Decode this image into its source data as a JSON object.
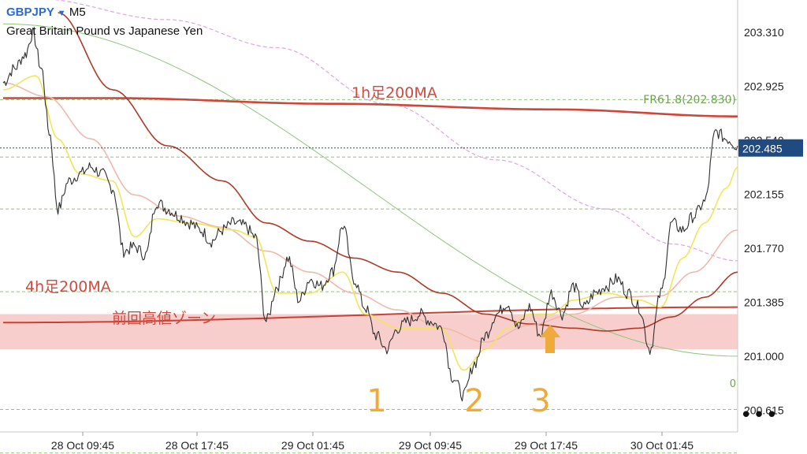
{
  "header": {
    "symbol": "GBPJPY",
    "timeframe": "M5",
    "subtitle": "Great Britain Pound vs Japanese Yen",
    "dropdown_icon": "triangle-down-icon"
  },
  "menu": {
    "label": "•••",
    "icon": "more-dots-icon"
  },
  "colors": {
    "price": "#2f2f2f",
    "ma_fast": "#f2e55c",
    "ma_pink": "#f0b9ad",
    "ma_dark": "#b03a26",
    "ma_1h200": "#d0453a",
    "ma_4h200": "#c74235",
    "trend_green": "#8dc67a",
    "ma_violet": "#e3a2e6",
    "zone_fill": "#f6c6c3",
    "annotation_red": "#d24a3e",
    "annotation_orange": "#eeaa3a",
    "fib_green": "#6aa64d",
    "current_price_bg": "#1f4b82"
  },
  "chart_data": {
    "type": "line",
    "symbol": "GBPJPY",
    "timeframe": "M5",
    "x_ticks": [
      "28 Oct 09:45",
      "28 Oct 17:45",
      "29 Oct 01:45",
      "29 Oct 09:45",
      "29 Oct 17:45",
      "30 Oct 01:45"
    ],
    "y_ticks": [
      "203.310",
      "202.925",
      "202.540",
      "202.155",
      "201.770",
      "201.385",
      "201.000",
      "200.615"
    ],
    "ylim": [
      200.46,
      203.54
    ],
    "current_price": "202.485",
    "fib_label": "FR61.8(202.830)",
    "fib_zero_label": "0",
    "fib_levels": [
      202.83,
      202.42,
      202.05,
      201.46,
      200.62,
      200.31
    ],
    "annotations": {
      "ma_1h": "1h足200MA",
      "ma_4h": "4h足200MA",
      "zone": "前回高値ゾーン",
      "swing_1": "1",
      "swing_2": "2",
      "swing_3": "3",
      "arrow_icon": "up-arrow-icon"
    },
    "price_keypoints": [
      [
        0,
        202.95
      ],
      [
        1,
        203.05
      ],
      [
        2,
        203.15
      ],
      [
        2.7,
        203.3
      ],
      [
        3.5,
        203.05
      ],
      [
        4.2,
        202.6
      ],
      [
        5,
        202.05
      ],
      [
        6,
        202.25
      ],
      [
        7,
        202.3
      ],
      [
        8,
        202.35
      ],
      [
        9,
        202.3
      ],
      [
        10,
        202.2
      ],
      [
        11,
        201.75
      ],
      [
        12,
        201.78
      ],
      [
        13,
        201.72
      ],
      [
        14,
        202.1
      ],
      [
        15,
        202.05
      ],
      [
        16,
        202.0
      ],
      [
        17,
        201.95
      ],
      [
        18,
        201.9
      ],
      [
        19,
        201.82
      ],
      [
        20,
        201.9
      ],
      [
        21,
        201.95
      ],
      [
        22,
        201.93
      ],
      [
        23,
        201.85
      ],
      [
        24,
        201.25
      ],
      [
        25,
        201.5
      ],
      [
        26,
        201.7
      ],
      [
        27,
        201.4
      ],
      [
        28,
        201.55
      ],
      [
        29,
        201.5
      ],
      [
        30,
        201.6
      ],
      [
        31,
        201.93
      ],
      [
        32,
        201.55
      ],
      [
        33,
        201.35
      ],
      [
        34,
        201.15
      ],
      [
        35,
        201.05
      ],
      [
        36,
        201.2
      ],
      [
        37,
        201.25
      ],
      [
        38,
        201.3
      ],
      [
        39,
        201.25
      ],
      [
        40,
        201.2
      ],
      [
        41,
        200.85
      ],
      [
        42,
        200.72
      ],
      [
        43,
        200.95
      ],
      [
        44,
        201.15
      ],
      [
        45,
        201.3
      ],
      [
        46,
        201.38
      ],
      [
        47,
        201.2
      ],
      [
        48,
        201.35
      ],
      [
        49,
        201.15
      ],
      [
        50,
        201.45
      ],
      [
        51,
        201.3
      ],
      [
        52,
        201.5
      ],
      [
        53,
        201.35
      ],
      [
        54,
        201.45
      ],
      [
        55,
        201.5
      ],
      [
        56,
        201.55
      ],
      [
        57,
        201.45
      ],
      [
        58,
        201.35
      ],
      [
        59,
        201.05
      ],
      [
        60,
        201.45
      ],
      [
        61,
        201.95
      ],
      [
        62,
        201.9
      ],
      [
        63,
        202.0
      ],
      [
        64,
        202.1
      ],
      [
        65,
        202.6
      ],
      [
        66,
        202.55
      ],
      [
        67,
        202.5
      ]
    ],
    "ma_fast_keypoints": [
      [
        0,
        202.9
      ],
      [
        3,
        203.0
      ],
      [
        5,
        202.55
      ],
      [
        7,
        202.3
      ],
      [
        10,
        202.25
      ],
      [
        12,
        201.85
      ],
      [
        14,
        201.98
      ],
      [
        17,
        201.95
      ],
      [
        21,
        201.9
      ],
      [
        23,
        201.85
      ],
      [
        25,
        201.45
      ],
      [
        28,
        201.45
      ],
      [
        31,
        201.6
      ],
      [
        33,
        201.3
      ],
      [
        36,
        201.2
      ],
      [
        40,
        201.2
      ],
      [
        42,
        200.9
      ],
      [
        44,
        201.05
      ],
      [
        46,
        201.2
      ],
      [
        48,
        201.3
      ],
      [
        50,
        201.3
      ],
      [
        52,
        201.4
      ],
      [
        55,
        201.45
      ],
      [
        58,
        201.4
      ],
      [
        60,
        201.35
      ],
      [
        62,
        201.7
      ],
      [
        64,
        201.95
      ],
      [
        66,
        202.2
      ],
      [
        67,
        202.35
      ]
    ],
    "ma_pink_keypoints": [
      [
        0,
        202.95
      ],
      [
        4,
        202.85
      ],
      [
        8,
        202.55
      ],
      [
        12,
        202.15
      ],
      [
        16,
        202.0
      ],
      [
        20,
        201.92
      ],
      [
        24,
        201.75
      ],
      [
        28,
        201.6
      ],
      [
        32,
        201.45
      ],
      [
        36,
        201.33
      ],
      [
        40,
        201.2
      ],
      [
        44,
        201.1
      ],
      [
        48,
        201.22
      ],
      [
        52,
        201.3
      ],
      [
        56,
        201.42
      ],
      [
        60,
        201.43
      ],
      [
        63,
        201.6
      ],
      [
        67,
        201.9
      ]
    ],
    "ma_dark_keypoints": [
      [
        5,
        203.45
      ],
      [
        10,
        202.9
      ],
      [
        15,
        202.5
      ],
      [
        20,
        202.25
      ],
      [
        24,
        201.95
      ],
      [
        28,
        201.82
      ],
      [
        32,
        201.7
      ],
      [
        36,
        201.6
      ],
      [
        40,
        201.45
      ],
      [
        44,
        201.3
      ],
      [
        48,
        201.23
      ],
      [
        52,
        201.2
      ],
      [
        55,
        201.18
      ],
      [
        58,
        201.2
      ],
      [
        61,
        201.28
      ],
      [
        64,
        201.42
      ],
      [
        67,
        201.6
      ]
    ],
    "ma_1h200_keypoints": [
      [
        0,
        202.84
      ],
      [
        10,
        202.84
      ],
      [
        30,
        202.8
      ],
      [
        50,
        202.76
      ],
      [
        67,
        202.71
      ]
    ],
    "ma_4h200_keypoints": [
      [
        0,
        201.24
      ],
      [
        67,
        201.35
      ]
    ],
    "trend_green_keypoints": [
      [
        0,
        203.37
      ],
      [
        67,
        201.0
      ]
    ],
    "ma_violet_keypoints": [
      [
        3,
        203.55
      ],
      [
        15,
        203.4
      ],
      [
        25,
        203.2
      ],
      [
        35,
        202.8
      ],
      [
        45,
        202.4
      ],
      [
        55,
        202.05
      ],
      [
        61,
        201.8
      ],
      [
        67,
        201.68
      ]
    ],
    "zone_range": [
      201.05,
      201.3
    ]
  }
}
